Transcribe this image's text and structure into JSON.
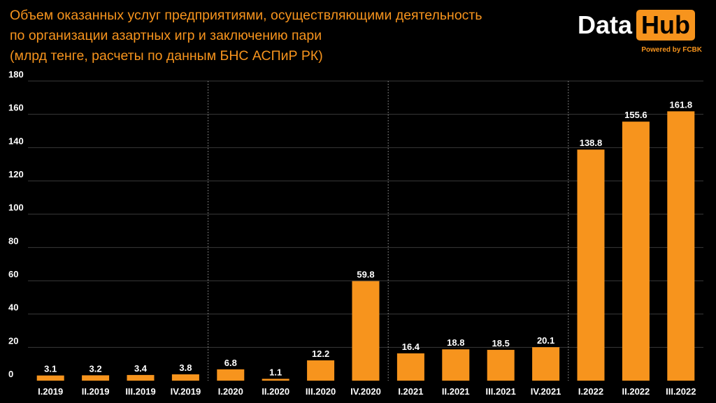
{
  "title": {
    "line1": "Объем оказанных услуг предприятиями, осуществляющими  деятельность",
    "line2": "по организации азартных игр и заключению пари",
    "line3": "(млрд тенге, расчеты по данным БНС АСПиР РК)"
  },
  "logo": {
    "data": "Data",
    "hub": "Hub",
    "powered": "Powered by FCBK"
  },
  "colors": {
    "bar": "#f7941d",
    "title": "#f7941d",
    "background": "#000000",
    "text": "#ffffff",
    "grid": "#3a3a3a"
  },
  "chart_data": {
    "type": "bar",
    "categories": [
      "I.2019",
      "II.2019",
      "III.2019",
      "IV.2019",
      "I.2020",
      "II.2020",
      "III.2020",
      "IV.2020",
      "I.2021",
      "II.2021",
      "III.2021",
      "IV.2021",
      "I.2022",
      "II.2022",
      "III.2022"
    ],
    "values": [
      3.1,
      3.2,
      3.4,
      3.8,
      6.8,
      1.1,
      12.2,
      59.8,
      16.4,
      18.8,
      18.5,
      20.1,
      138.8,
      155.6,
      161.8
    ],
    "data_labels": [
      "3.1",
      "3.2",
      "3.4",
      "3.8",
      "6.8",
      "1.1",
      "12.2",
      "59.8",
      "16.4",
      "18.8",
      "18.5",
      "20.1",
      "138.8",
      "155.6",
      "161.8"
    ],
    "yticks": [
      "0",
      "20",
      "40",
      "60",
      "80",
      "100",
      "120",
      "140",
      "160",
      "180"
    ],
    "ylim": [
      0,
      180
    ],
    "grid": true,
    "year_separators_after_index": [
      3,
      7,
      11
    ]
  }
}
